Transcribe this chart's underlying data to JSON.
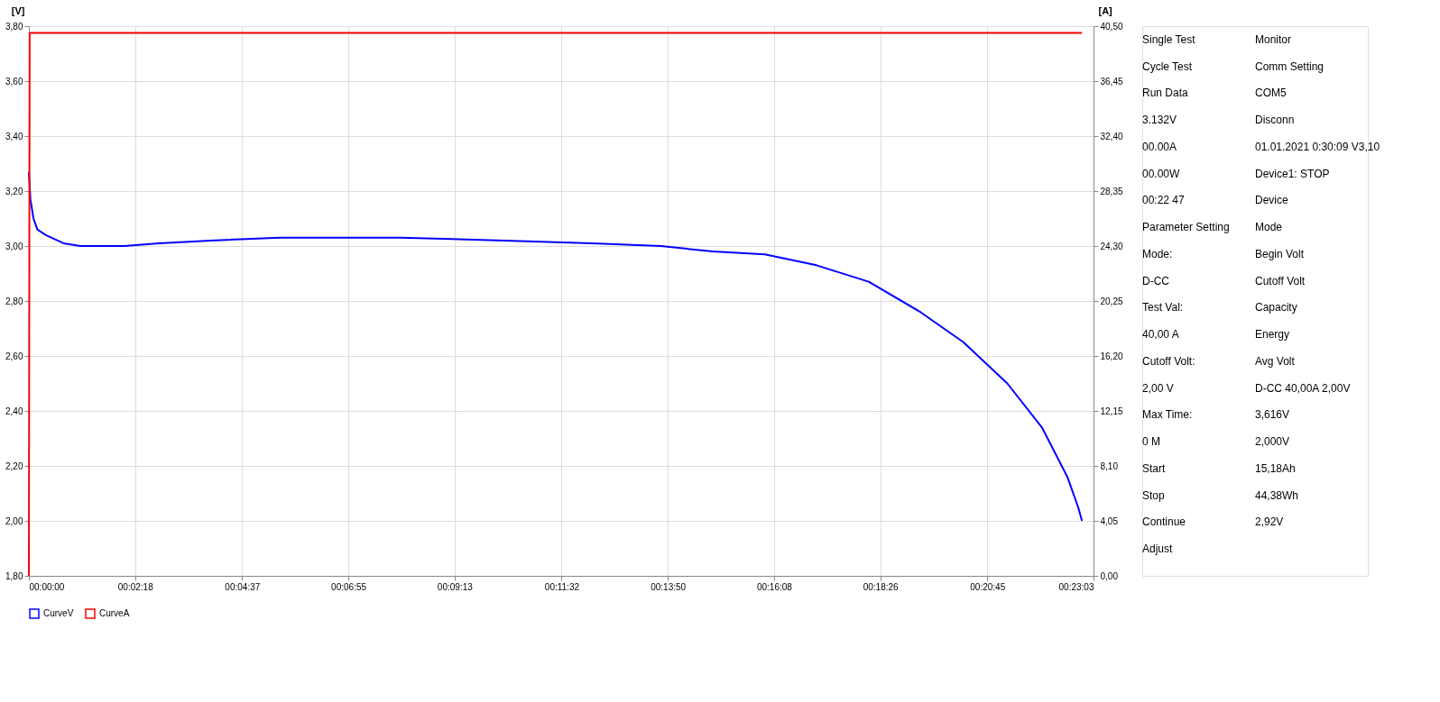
{
  "chart_data": {
    "type": "line",
    "xlim": [
      0,
      1383
    ],
    "xticks": [
      {
        "value": 0,
        "label": "00:00:00"
      },
      {
        "value": 138,
        "label": "00:02:18"
      },
      {
        "value": 277,
        "label": "00:04:37"
      },
      {
        "value": 415,
        "label": "00:06:55"
      },
      {
        "value": 553,
        "label": "00:09:13"
      },
      {
        "value": 692,
        "label": "00:11:32"
      },
      {
        "value": 830,
        "label": "00:13:50"
      },
      {
        "value": 968,
        "label": "00:16:08"
      },
      {
        "value": 1106,
        "label": "00:18:26"
      },
      {
        "value": 1245,
        "label": "00:20:45"
      },
      {
        "value": 1383,
        "label": "00:23:03"
      }
    ],
    "ylabel": "[V]",
    "y2label": "[A]",
    "ylim": [
      1.8,
      3.8
    ],
    "yticks": [
      {
        "value": 1.8,
        "label": "1,80"
      },
      {
        "value": 2.0,
        "label": "2,00"
      },
      {
        "value": 2.2,
        "label": "2,20"
      },
      {
        "value": 2.4,
        "label": "2,40"
      },
      {
        "value": 2.6,
        "label": "2,60"
      },
      {
        "value": 2.8,
        "label": "2,80"
      },
      {
        "value": 3.0,
        "label": "3,00"
      },
      {
        "value": 3.2,
        "label": "3,20"
      },
      {
        "value": 3.4,
        "label": "3,40"
      },
      {
        "value": 3.6,
        "label": "3,60"
      },
      {
        "value": 3.8,
        "label": "3,80"
      }
    ],
    "y2lim": [
      0,
      40.5
    ],
    "y2ticks": [
      {
        "value": 0,
        "label": "0,00"
      },
      {
        "value": 4.05,
        "label": "4,05"
      },
      {
        "value": 8.1,
        "label": "8,10"
      },
      {
        "value": 12.15,
        "label": "12,15"
      },
      {
        "value": 16.2,
        "label": "16,20"
      },
      {
        "value": 20.25,
        "label": "20,25"
      },
      {
        "value": 24.3,
        "label": "24,30"
      },
      {
        "value": 28.35,
        "label": "28,35"
      },
      {
        "value": 32.4,
        "label": "32,40"
      },
      {
        "value": 36.45,
        "label": "36,45"
      },
      {
        "value": 40.5,
        "label": "40,50"
      }
    ],
    "grid": true,
    "legend": "bottom",
    "series": [
      {
        "name": "CurveV",
        "color": "#0000ff",
        "x": [
          0,
          2,
          6,
          11,
          22,
          45,
          67,
          124,
          169,
          236,
          326,
          483,
          618,
          731,
          821,
          888,
          956,
          1023,
          1091,
          1158,
          1214,
          1271,
          1316,
          1349,
          1363,
          1368
        ],
        "values": [
          3.27,
          3.17,
          3.1,
          3.06,
          3.04,
          3.01,
          3.0,
          3.0,
          3.01,
          3.02,
          3.03,
          3.03,
          3.02,
          3.01,
          3.0,
          2.98,
          2.97,
          2.93,
          2.87,
          2.76,
          2.65,
          2.5,
          2.34,
          2.16,
          2.05,
          2.0
        ]
      },
      {
        "name": "CurveA",
        "color": "#ff0000",
        "axis": "y2",
        "x": [
          0,
          1,
          1368
        ],
        "values": [
          0,
          40,
          40
        ]
      }
    ],
    "annotations": [
      "Single Test",
      "Cycle Test",
      "Run Data",
      "3.132V",
      "00.00A",
      "00.00W",
      "00:22 47",
      "Parameter Setting",
      "Mode:",
      "D-CC",
      "Test Val:",
      "40,00 A",
      "Cutoff Volt:",
      "2,00 V",
      "Max Time:",
      "0 M",
      "Start",
      "Stop",
      "Continue",
      "Adjust",
      "Monitor",
      "Comm Setting",
      "COM5",
      "Disconn",
      "01.01.2021 0:30:09 V3,10",
      "Device1: STOP",
      "Device",
      "Mode",
      "Begin Volt",
      "Cutoff Volt",
      "Capacity",
      "Energy",
      "Avg Volt",
      "D-CC  40,00A  2,00V",
      "3,616V",
      "2,000V",
      "15,18Ah",
      "44,38Wh",
      "2,92V"
    ]
  }
}
